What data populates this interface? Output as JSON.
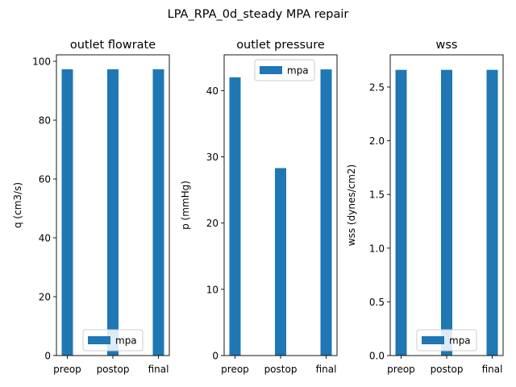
{
  "suptitle": "LPA_RPA_0d_steady MPA repair",
  "colors": {
    "bar": "#1f77b4",
    "axis": "#000000",
    "background": "#ffffff",
    "legend_border": "#cccccc"
  },
  "chart_data": [
    {
      "type": "bar",
      "title": "outlet flowrate",
      "xlabel": "",
      "ylabel": "q (cm3/s)",
      "categories": [
        "preop",
        "postop",
        "final"
      ],
      "series": [
        {
          "name": "mpa",
          "values": [
            97.3,
            97.3,
            97.3
          ]
        }
      ],
      "ylim": [
        0,
        102.2
      ],
      "yticks": [
        0,
        20,
        40,
        60,
        80,
        100
      ],
      "ytick_labels": [
        "0",
        "20",
        "40",
        "60",
        "80",
        "100"
      ],
      "legend": "lower center",
      "grid": false
    },
    {
      "type": "bar",
      "title": "outlet pressure",
      "xlabel": "",
      "ylabel": "p (mmHg)",
      "categories": [
        "preop",
        "postop",
        "final"
      ],
      "series": [
        {
          "name": "mpa",
          "values": [
            42.0,
            28.3,
            43.2
          ]
        }
      ],
      "ylim": [
        0,
        45.4
      ],
      "yticks": [
        0,
        10,
        20,
        30,
        40
      ],
      "ytick_labels": [
        "0",
        "10",
        "20",
        "30",
        "40"
      ],
      "legend": "upper center",
      "grid": false
    },
    {
      "type": "bar",
      "title": "wss",
      "xlabel": "",
      "ylabel": "wss (dynes/cm2)",
      "categories": [
        "preop",
        "postop",
        "final"
      ],
      "series": [
        {
          "name": "mpa",
          "values": [
            2.66,
            2.66,
            2.66
          ]
        }
      ],
      "ylim": [
        0,
        2.8
      ],
      "yticks": [
        0,
        0.5,
        1.0,
        1.5,
        2.0,
        2.5
      ],
      "ytick_labels": [
        "0.0",
        "0.5",
        "1.0",
        "1.5",
        "2.0",
        "2.5"
      ],
      "legend": "lower center",
      "grid": false
    }
  ]
}
